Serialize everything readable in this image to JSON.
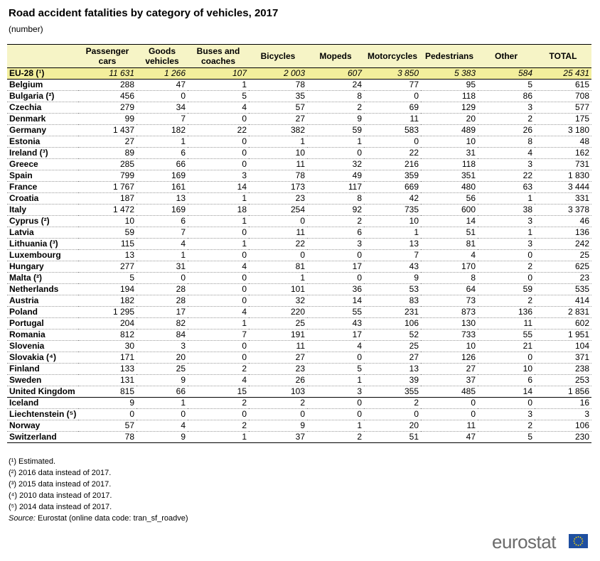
{
  "title": "Road accident fatalities by category of vehicles, 2017",
  "subtitle": "(number)",
  "table": {
    "header": [
      "Passenger cars",
      "Goods vehicles",
      "Buses and coaches",
      "Bicycles",
      "Mopeds",
      "Motorcycles",
      "Pedestrians",
      "Other",
      "TOTAL"
    ],
    "rows": [
      [
        "EU-28 (¹)",
        "11 631",
        "1 266",
        "107",
        "2 003",
        "607",
        "3 850",
        "5 383",
        "584",
        "25 431"
      ],
      [
        "Belgium",
        "288",
        "47",
        "1",
        "78",
        "24",
        "77",
        "95",
        "5",
        "615"
      ],
      [
        "Bulgaria (²)",
        "456",
        "0",
        "5",
        "35",
        "8",
        "0",
        "118",
        "86",
        "708"
      ],
      [
        "Czechia",
        "279",
        "34",
        "4",
        "57",
        "2",
        "69",
        "129",
        "3",
        "577"
      ],
      [
        "Denmark",
        "99",
        "7",
        "0",
        "27",
        "9",
        "11",
        "20",
        "2",
        "175"
      ],
      [
        "Germany",
        "1 437",
        "182",
        "22",
        "382",
        "59",
        "583",
        "489",
        "26",
        "3 180"
      ],
      [
        "Estonia",
        "27",
        "1",
        "0",
        "1",
        "1",
        "0",
        "10",
        "8",
        "48"
      ],
      [
        "Ireland (³)",
        "89",
        "6",
        "0",
        "10",
        "0",
        "22",
        "31",
        "4",
        "162"
      ],
      [
        "Greece",
        "285",
        "66",
        "0",
        "11",
        "32",
        "216",
        "118",
        "3",
        "731"
      ],
      [
        "Spain",
        "799",
        "169",
        "3",
        "78",
        "49",
        "359",
        "351",
        "22",
        "1 830"
      ],
      [
        "France",
        "1 767",
        "161",
        "14",
        "173",
        "117",
        "669",
        "480",
        "63",
        "3 444"
      ],
      [
        "Croatia",
        "187",
        "13",
        "1",
        "23",
        "8",
        "42",
        "56",
        "1",
        "331"
      ],
      [
        "Italy",
        "1 472",
        "169",
        "18",
        "254",
        "92",
        "735",
        "600",
        "38",
        "3 378"
      ],
      [
        "Cyprus (²)",
        "10",
        "6",
        "1",
        "0",
        "2",
        "10",
        "14",
        "3",
        "46"
      ],
      [
        "Latvia",
        "59",
        "7",
        "0",
        "11",
        "6",
        "1",
        "51",
        "1",
        "136"
      ],
      [
        "Lithuania (³)",
        "115",
        "4",
        "1",
        "22",
        "3",
        "13",
        "81",
        "3",
        "242"
      ],
      [
        "Luxembourg",
        "13",
        "1",
        "0",
        "0",
        "0",
        "7",
        "4",
        "0",
        "25"
      ],
      [
        "Hungary",
        "277",
        "31",
        "4",
        "81",
        "17",
        "43",
        "170",
        "2",
        "625"
      ],
      [
        "Malta (²)",
        "5",
        "0",
        "0",
        "1",
        "0",
        "9",
        "8",
        "0",
        "23"
      ],
      [
        "Netherlands",
        "194",
        "28",
        "0",
        "101",
        "36",
        "53",
        "64",
        "59",
        "535"
      ],
      [
        "Austria",
        "182",
        "28",
        "0",
        "32",
        "14",
        "83",
        "73",
        "2",
        "414"
      ],
      [
        "Poland",
        "1 295",
        "17",
        "4",
        "220",
        "55",
        "231",
        "873",
        "136",
        "2 831"
      ],
      [
        "Portugal",
        "204",
        "82",
        "1",
        "25",
        "43",
        "106",
        "130",
        "11",
        "602"
      ],
      [
        "Romania",
        "812",
        "84",
        "7",
        "191",
        "17",
        "52",
        "733",
        "55",
        "1 951"
      ],
      [
        "Slovenia",
        "30",
        "3",
        "0",
        "11",
        "4",
        "25",
        "10",
        "21",
        "104"
      ],
      [
        "Slovakia (⁴)",
        "171",
        "20",
        "0",
        "27",
        "0",
        "27",
        "126",
        "0",
        "371"
      ],
      [
        "Finland",
        "133",
        "25",
        "2",
        "23",
        "5",
        "13",
        "27",
        "10",
        "238"
      ],
      [
        "Sweden",
        "131",
        "9",
        "4",
        "26",
        "1",
        "39",
        "37",
        "6",
        "253"
      ],
      [
        "United Kingdom",
        "815",
        "66",
        "15",
        "103",
        "3",
        "355",
        "485",
        "14",
        "1 856"
      ],
      [
        "Iceland",
        "9",
        "1",
        "2",
        "2",
        "0",
        "2",
        "0",
        "0",
        "16"
      ],
      [
        "Liechtenstein (⁵)",
        "0",
        "0",
        "0",
        "0",
        "0",
        "0",
        "0",
        "3",
        "3"
      ],
      [
        "Norway",
        "57",
        "4",
        "2",
        "9",
        "1",
        "20",
        "11",
        "2",
        "106"
      ],
      [
        "Switzerland",
        "78",
        "9",
        "1",
        "37",
        "2",
        "51",
        "47",
        "5",
        "230"
      ]
    ]
  },
  "footnotes": [
    "(¹) Estimated.",
    "(²) 2016 data instead of 2017.",
    "(³) 2015 data instead of 2017.",
    "(⁴) 2010 data instead of 2017.",
    "(⁵) 2014 data instead of 2017."
  ],
  "source": {
    "label": "Source:",
    "text": "Eurostat (online data code: tran_sf_roadve)"
  },
  "logo": "eurostat"
}
